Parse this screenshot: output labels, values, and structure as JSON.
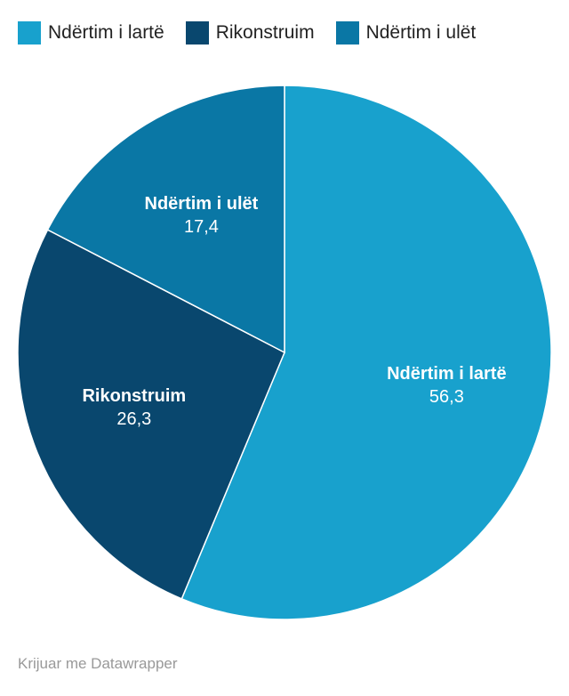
{
  "chart_data": {
    "type": "pie",
    "categories": [
      "Ndërtim i lartë",
      "Rikonstruim",
      "Ndërtim i ulët"
    ],
    "values": [
      56.3,
      26.3,
      17.4
    ],
    "value_labels": [
      "56,3",
      "26,3",
      "17,4"
    ],
    "colors": [
      "#18a1cd",
      "#09476e",
      "#0a77a5"
    ],
    "footer": "Krijuar me Datawrapper"
  }
}
